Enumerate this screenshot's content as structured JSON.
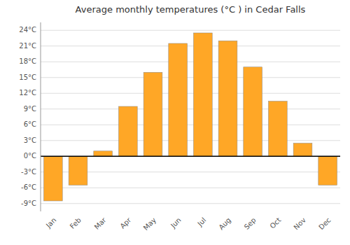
{
  "chart_data": {
    "type": "bar",
    "title": "Average monthly temperatures (°C ) in Cedar Falls",
    "categories": [
      "Jan",
      "Feb",
      "Mar",
      "Apr",
      "May",
      "Jun",
      "Jul",
      "Aug",
      "Sep",
      "Oct",
      "Nov",
      "Dec"
    ],
    "values": [
      -8.5,
      -5.5,
      1.0,
      9.5,
      16.0,
      21.5,
      23.5,
      22.0,
      17.0,
      10.5,
      2.5,
      -5.5
    ],
    "color": "#FFA726",
    "ylim": [
      -10.5,
      25.5
    ],
    "yticks": [
      {
        "value": -9,
        "label": "-9°C"
      },
      {
        "value": -6,
        "label": "-6°C"
      },
      {
        "value": -3,
        "label": "-3°C"
      },
      {
        "value": 0,
        "label": "0°C"
      },
      {
        "value": 3,
        "label": "3°C"
      },
      {
        "value": 6,
        "label": "6°C"
      },
      {
        "value": 9,
        "label": "9°C"
      },
      {
        "value": 12,
        "label": "12°C"
      },
      {
        "value": 15,
        "label": "15°C"
      },
      {
        "value": 18,
        "label": "18°C"
      },
      {
        "value": 21,
        "label": "21°C"
      },
      {
        "value": 24,
        "label": "24°C"
      }
    ],
    "grid": true
  }
}
